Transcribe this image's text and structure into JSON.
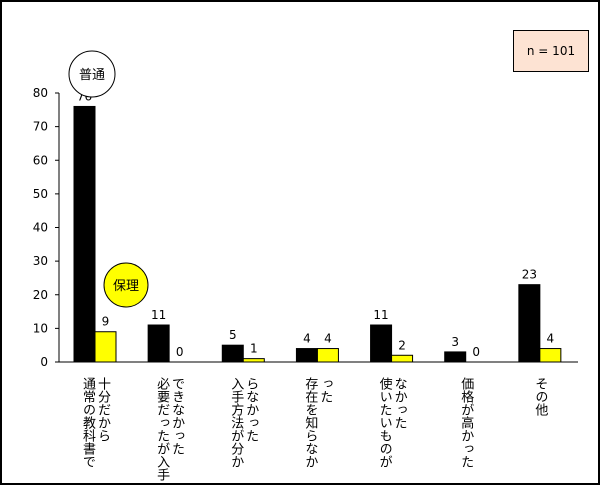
{
  "sample_box": {
    "text": "n = 101"
  },
  "legend": {
    "futsu": {
      "label": "普通",
      "fill": "#ffffff"
    },
    "hori": {
      "label": "保理",
      "fill": "#ffff00"
    }
  },
  "colors": {
    "futsu": "#000000",
    "hori": "#ffff00",
    "axis": "#000000"
  },
  "chart_data": {
    "type": "bar",
    "ylim": [
      0,
      80
    ],
    "y_ticks": [
      0,
      10,
      20,
      30,
      40,
      50,
      60,
      70,
      80
    ],
    "categories": [
      "通常の教科書で十分だから",
      "必要だったが入手できなかった",
      "入手方法が分からなかった",
      "存在を知らなかった",
      "使いたいものがなかった",
      "価格が高かった",
      "その他"
    ],
    "series": [
      {
        "name": "普通",
        "color": "#000000",
        "values": [
          76,
          11,
          5,
          4,
          11,
          3,
          23
        ]
      },
      {
        "name": "保理",
        "color": "#ffff00",
        "values": [
          9,
          0,
          1,
          4,
          2,
          0,
          4
        ]
      }
    ]
  }
}
